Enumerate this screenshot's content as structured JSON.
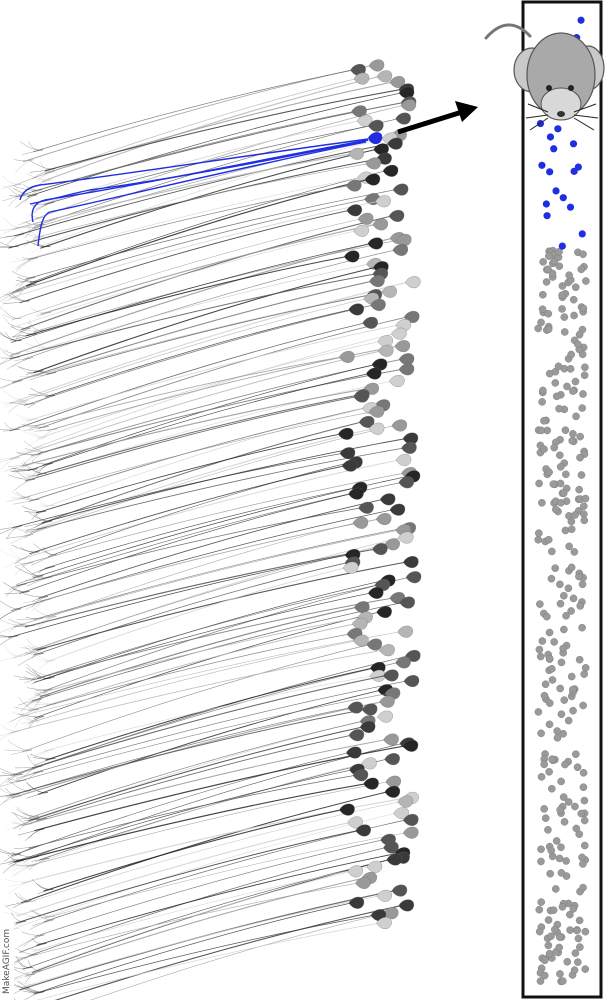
{
  "watermark": "MakeAGIF.com",
  "colors": {
    "background": "#ffffff",
    "neuron_dark": "#2a2a2a",
    "neuron_mid": "#7a7a7a",
    "neuron_light": "#c8c8c8",
    "highlight": "#1f2ee0",
    "dot_grey": "#9a9a9a",
    "dot_blue": "#1f2ee0",
    "column_border": "#111111",
    "mouse_body": "#a9a9a9",
    "mouse_ear": "#c9c9c9",
    "arrow": "#000000"
  },
  "elements": {
    "neuron_field": "neuron-field",
    "highlighted_neuron": "highlighted-neuron",
    "arrow": "arrow-icon",
    "column": "cortical-column",
    "mouse": "mouse-icon"
  }
}
